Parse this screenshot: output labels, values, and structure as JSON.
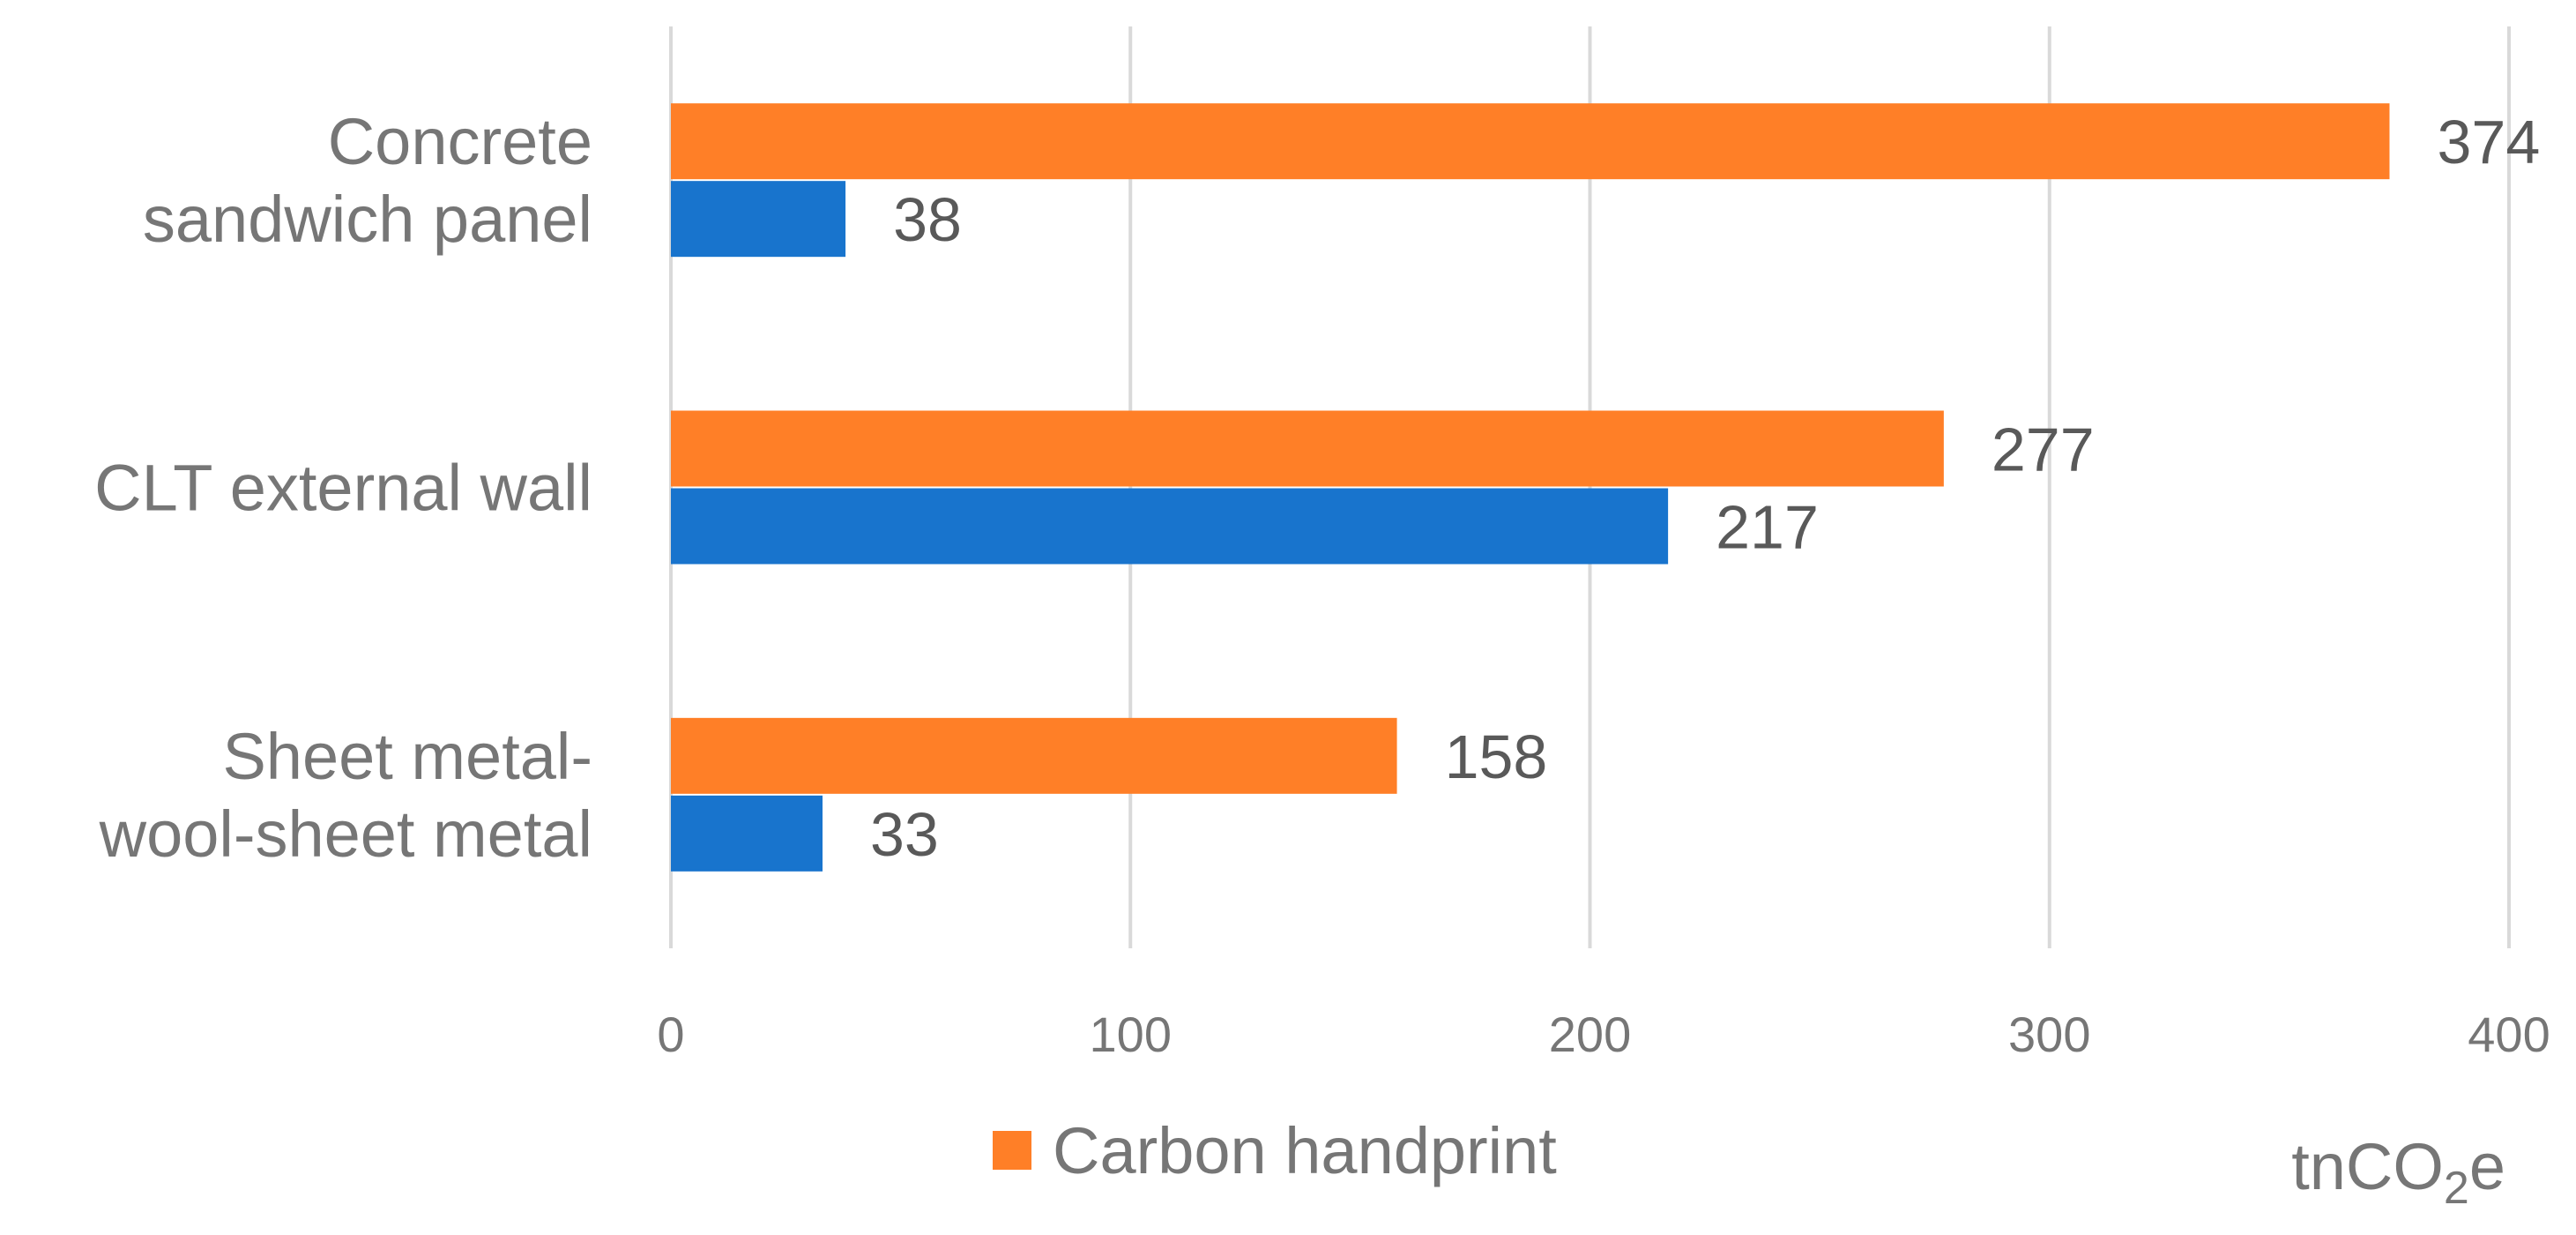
{
  "chart_data": {
    "type": "bar",
    "orientation": "horizontal",
    "categories": [
      "Concrete sandwich panel",
      "CLT external wall",
      "Sheet metal-wool-sheet metal"
    ],
    "category_lines": [
      [
        "Concrete",
        "sandwich panel"
      ],
      [
        "CLT external wall"
      ],
      [
        "Sheet metal-",
        "wool-sheet metal"
      ]
    ],
    "series": [
      {
        "name": "Carbon handprint",
        "color": "#FF7F27",
        "values": [
          374,
          277,
          158
        ]
      },
      {
        "color": "#1874CD",
        "values": [
          38,
          217,
          33
        ]
      }
    ],
    "xlim": [
      0,
      400
    ],
    "xticks": [
      "0",
      "100",
      "200",
      "300",
      "400"
    ],
    "grid": true,
    "legend": {
      "position": "bottom",
      "entries": [
        "Carbon handprint"
      ]
    },
    "unit": {
      "base": "tnCO",
      "subscript": "2",
      "suffix": "e"
    }
  }
}
